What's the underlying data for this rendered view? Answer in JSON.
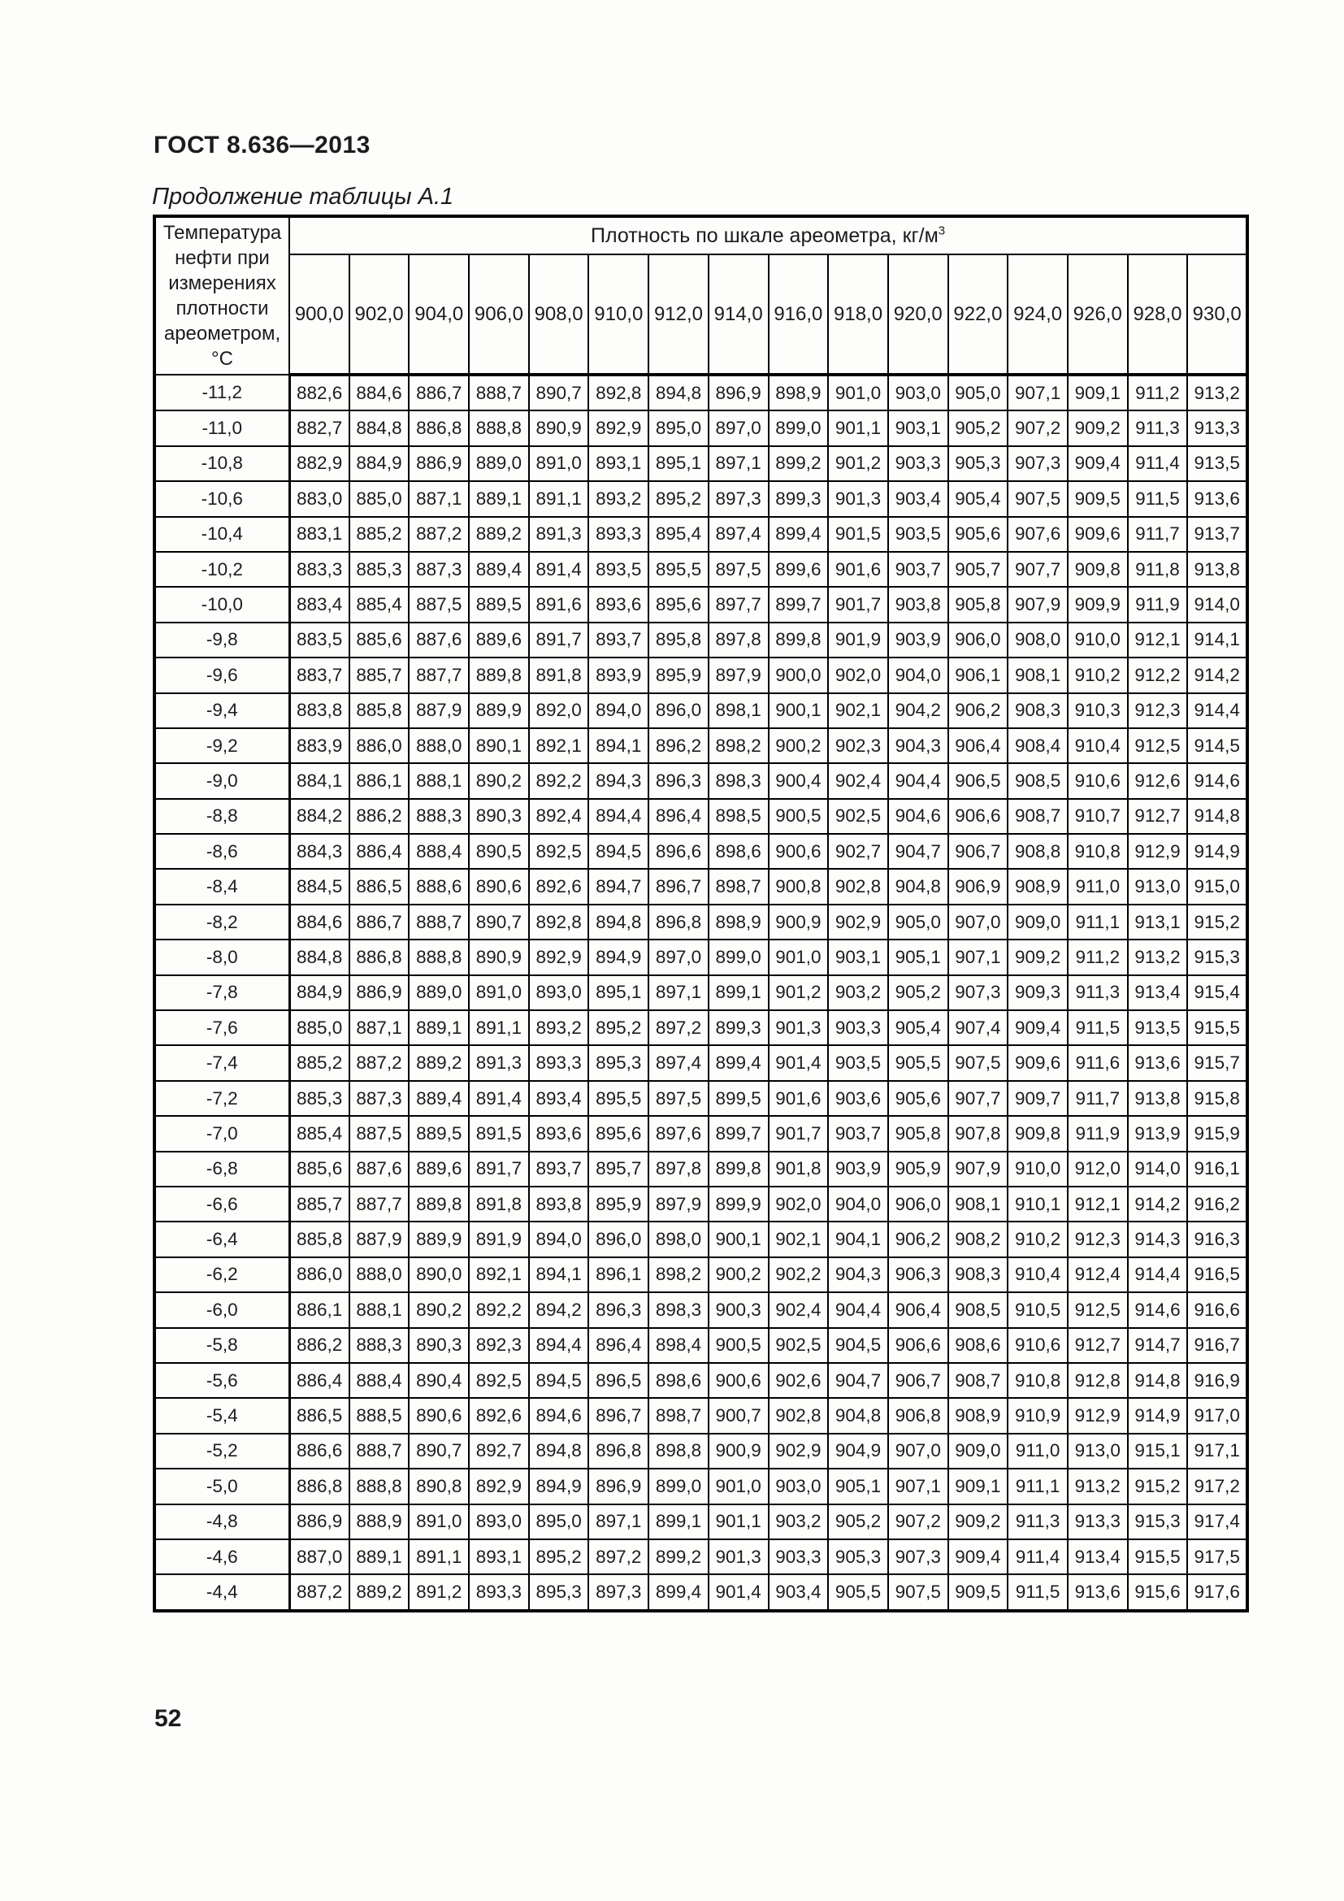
{
  "page": {
    "doc_code": "ГОСТ 8.636—2013",
    "table_caption": "Продолжение таблицы А.1",
    "page_number": "52"
  },
  "colors": {
    "background": "#fdfdfc",
    "text": "#1c1c1c",
    "border": "#000000"
  },
  "table": {
    "corner_header": "Температура нефти при измерениях плотности ареометром, °С",
    "group_header": "Плотность по шкале ареометра, кг/м",
    "group_header_sup": "3",
    "columns": [
      "900,0",
      "902,0",
      "904,0",
      "906,0",
      "908,0",
      "910,0",
      "912,0",
      "914,0",
      "916,0",
      "918,0",
      "920,0",
      "922,0",
      "924,0",
      "926,0",
      "928,0",
      "930,0"
    ],
    "rows": [
      {
        "t": "-11,2",
        "v": [
          "882,6",
          "884,6",
          "886,7",
          "888,7",
          "890,7",
          "892,8",
          "894,8",
          "896,9",
          "898,9",
          "901,0",
          "903,0",
          "905,0",
          "907,1",
          "909,1",
          "911,2",
          "913,2"
        ]
      },
      {
        "t": "-11,0",
        "v": [
          "882,7",
          "884,8",
          "886,8",
          "888,8",
          "890,9",
          "892,9",
          "895,0",
          "897,0",
          "899,0",
          "901,1",
          "903,1",
          "905,2",
          "907,2",
          "909,2",
          "911,3",
          "913,3"
        ]
      },
      {
        "t": "-10,8",
        "v": [
          "882,9",
          "884,9",
          "886,9",
          "889,0",
          "891,0",
          "893,1",
          "895,1",
          "897,1",
          "899,2",
          "901,2",
          "903,3",
          "905,3",
          "907,3",
          "909,4",
          "911,4",
          "913,5"
        ]
      },
      {
        "t": "-10,6",
        "v": [
          "883,0",
          "885,0",
          "887,1",
          "889,1",
          "891,1",
          "893,2",
          "895,2",
          "897,3",
          "899,3",
          "901,3",
          "903,4",
          "905,4",
          "907,5",
          "909,5",
          "911,5",
          "913,6"
        ]
      },
      {
        "t": "-10,4",
        "v": [
          "883,1",
          "885,2",
          "887,2",
          "889,2",
          "891,3",
          "893,3",
          "895,4",
          "897,4",
          "899,4",
          "901,5",
          "903,5",
          "905,6",
          "907,6",
          "909,6",
          "911,7",
          "913,7"
        ]
      },
      {
        "t": "-10,2",
        "v": [
          "883,3",
          "885,3",
          "887,3",
          "889,4",
          "891,4",
          "893,5",
          "895,5",
          "897,5",
          "899,6",
          "901,6",
          "903,7",
          "905,7",
          "907,7",
          "909,8",
          "911,8",
          "913,8"
        ]
      },
      {
        "t": "-10,0",
        "v": [
          "883,4",
          "885,4",
          "887,5",
          "889,5",
          "891,6",
          "893,6",
          "895,6",
          "897,7",
          "899,7",
          "901,7",
          "903,8",
          "905,8",
          "907,9",
          "909,9",
          "911,9",
          "914,0"
        ]
      },
      {
        "t": "-9,8",
        "v": [
          "883,5",
          "885,6",
          "887,6",
          "889,6",
          "891,7",
          "893,7",
          "895,8",
          "897,8",
          "899,8",
          "901,9",
          "903,9",
          "906,0",
          "908,0",
          "910,0",
          "912,1",
          "914,1"
        ]
      },
      {
        "t": "-9,6",
        "v": [
          "883,7",
          "885,7",
          "887,7",
          "889,8",
          "891,8",
          "893,9",
          "895,9",
          "897,9",
          "900,0",
          "902,0",
          "904,0",
          "906,1",
          "908,1",
          "910,2",
          "912,2",
          "914,2"
        ]
      },
      {
        "t": "-9,4",
        "v": [
          "883,8",
          "885,8",
          "887,9",
          "889,9",
          "892,0",
          "894,0",
          "896,0",
          "898,1",
          "900,1",
          "902,1",
          "904,2",
          "906,2",
          "908,3",
          "910,3",
          "912,3",
          "914,4"
        ]
      },
      {
        "t": "-9,2",
        "v": [
          "883,9",
          "886,0",
          "888,0",
          "890,1",
          "892,1",
          "894,1",
          "896,2",
          "898,2",
          "900,2",
          "902,3",
          "904,3",
          "906,4",
          "908,4",
          "910,4",
          "912,5",
          "914,5"
        ]
      },
      {
        "t": "-9,0",
        "v": [
          "884,1",
          "886,1",
          "888,1",
          "890,2",
          "892,2",
          "894,3",
          "896,3",
          "898,3",
          "900,4",
          "902,4",
          "904,4",
          "906,5",
          "908,5",
          "910,6",
          "912,6",
          "914,6"
        ]
      },
      {
        "t": "-8,8",
        "v": [
          "884,2",
          "886,2",
          "888,3",
          "890,3",
          "892,4",
          "894,4",
          "896,4",
          "898,5",
          "900,5",
          "902,5",
          "904,6",
          "906,6",
          "908,7",
          "910,7",
          "912,7",
          "914,8"
        ]
      },
      {
        "t": "-8,6",
        "v": [
          "884,3",
          "886,4",
          "888,4",
          "890,5",
          "892,5",
          "894,5",
          "896,6",
          "898,6",
          "900,6",
          "902,7",
          "904,7",
          "906,7",
          "908,8",
          "910,8",
          "912,9",
          "914,9"
        ]
      },
      {
        "t": "-8,4",
        "v": [
          "884,5",
          "886,5",
          "888,6",
          "890,6",
          "892,6",
          "894,7",
          "896,7",
          "898,7",
          "900,8",
          "902,8",
          "904,8",
          "906,9",
          "908,9",
          "911,0",
          "913,0",
          "915,0"
        ]
      },
      {
        "t": "-8,2",
        "v": [
          "884,6",
          "886,7",
          "888,7",
          "890,7",
          "892,8",
          "894,8",
          "896,8",
          "898,9",
          "900,9",
          "902,9",
          "905,0",
          "907,0",
          "909,0",
          "911,1",
          "913,1",
          "915,2"
        ]
      },
      {
        "t": "-8,0",
        "v": [
          "884,8",
          "886,8",
          "888,8",
          "890,9",
          "892,9",
          "894,9",
          "897,0",
          "899,0",
          "901,0",
          "903,1",
          "905,1",
          "907,1",
          "909,2",
          "911,2",
          "913,2",
          "915,3"
        ]
      },
      {
        "t": "-7,8",
        "v": [
          "884,9",
          "886,9",
          "889,0",
          "891,0",
          "893,0",
          "895,1",
          "897,1",
          "899,1",
          "901,2",
          "903,2",
          "905,2",
          "907,3",
          "909,3",
          "911,3",
          "913,4",
          "915,4"
        ]
      },
      {
        "t": "-7,6",
        "v": [
          "885,0",
          "887,1",
          "889,1",
          "891,1",
          "893,2",
          "895,2",
          "897,2",
          "899,3",
          "901,3",
          "903,3",
          "905,4",
          "907,4",
          "909,4",
          "911,5",
          "913,5",
          "915,5"
        ]
      },
      {
        "t": "-7,4",
        "v": [
          "885,2",
          "887,2",
          "889,2",
          "891,3",
          "893,3",
          "895,3",
          "897,4",
          "899,4",
          "901,4",
          "903,5",
          "905,5",
          "907,5",
          "909,6",
          "911,6",
          "913,6",
          "915,7"
        ]
      },
      {
        "t": "-7,2",
        "v": [
          "885,3",
          "887,3",
          "889,4",
          "891,4",
          "893,4",
          "895,5",
          "897,5",
          "899,5",
          "901,6",
          "903,6",
          "905,6",
          "907,7",
          "909,7",
          "911,7",
          "913,8",
          "915,8"
        ]
      },
      {
        "t": "-7,0",
        "v": [
          "885,4",
          "887,5",
          "889,5",
          "891,5",
          "893,6",
          "895,6",
          "897,6",
          "899,7",
          "901,7",
          "903,7",
          "905,8",
          "907,8",
          "909,8",
          "911,9",
          "913,9",
          "915,9"
        ]
      },
      {
        "t": "-6,8",
        "v": [
          "885,6",
          "887,6",
          "889,6",
          "891,7",
          "893,7",
          "895,7",
          "897,8",
          "899,8",
          "901,8",
          "903,9",
          "905,9",
          "907,9",
          "910,0",
          "912,0",
          "914,0",
          "916,1"
        ]
      },
      {
        "t": "-6,6",
        "v": [
          "885,7",
          "887,7",
          "889,8",
          "891,8",
          "893,8",
          "895,9",
          "897,9",
          "899,9",
          "902,0",
          "904,0",
          "906,0",
          "908,1",
          "910,1",
          "912,1",
          "914,2",
          "916,2"
        ]
      },
      {
        "t": "-6,4",
        "v": [
          "885,8",
          "887,9",
          "889,9",
          "891,9",
          "894,0",
          "896,0",
          "898,0",
          "900,1",
          "902,1",
          "904,1",
          "906,2",
          "908,2",
          "910,2",
          "912,3",
          "914,3",
          "916,3"
        ]
      },
      {
        "t": "-6,2",
        "v": [
          "886,0",
          "888,0",
          "890,0",
          "892,1",
          "894,1",
          "896,1",
          "898,2",
          "900,2",
          "902,2",
          "904,3",
          "906,3",
          "908,3",
          "910,4",
          "912,4",
          "914,4",
          "916,5"
        ]
      },
      {
        "t": "-6,0",
        "v": [
          "886,1",
          "888,1",
          "890,2",
          "892,2",
          "894,2",
          "896,3",
          "898,3",
          "900,3",
          "902,4",
          "904,4",
          "906,4",
          "908,5",
          "910,5",
          "912,5",
          "914,6",
          "916,6"
        ]
      },
      {
        "t": "-5,8",
        "v": [
          "886,2",
          "888,3",
          "890,3",
          "892,3",
          "894,4",
          "896,4",
          "898,4",
          "900,5",
          "902,5",
          "904,5",
          "906,6",
          "908,6",
          "910,6",
          "912,7",
          "914,7",
          "916,7"
        ]
      },
      {
        "t": "-5,6",
        "v": [
          "886,4",
          "888,4",
          "890,4",
          "892,5",
          "894,5",
          "896,5",
          "898,6",
          "900,6",
          "902,6",
          "904,7",
          "906,7",
          "908,7",
          "910,8",
          "912,8",
          "914,8",
          "916,9"
        ]
      },
      {
        "t": "-5,4",
        "v": [
          "886,5",
          "888,5",
          "890,6",
          "892,6",
          "894,6",
          "896,7",
          "898,7",
          "900,7",
          "902,8",
          "904,8",
          "906,8",
          "908,9",
          "910,9",
          "912,9",
          "914,9",
          "917,0"
        ]
      },
      {
        "t": "-5,2",
        "v": [
          "886,6",
          "888,7",
          "890,7",
          "892,7",
          "894,8",
          "896,8",
          "898,8",
          "900,9",
          "902,9",
          "904,9",
          "907,0",
          "909,0",
          "911,0",
          "913,0",
          "915,1",
          "917,1"
        ]
      },
      {
        "t": "-5,0",
        "v": [
          "886,8",
          "888,8",
          "890,8",
          "892,9",
          "894,9",
          "896,9",
          "899,0",
          "901,0",
          "903,0",
          "905,1",
          "907,1",
          "909,1",
          "911,1",
          "913,2",
          "915,2",
          "917,2"
        ]
      },
      {
        "t": "-4,8",
        "v": [
          "886,9",
          "888,9",
          "891,0",
          "893,0",
          "895,0",
          "897,1",
          "899,1",
          "901,1",
          "903,2",
          "905,2",
          "907,2",
          "909,2",
          "911,3",
          "913,3",
          "915,3",
          "917,4"
        ]
      },
      {
        "t": "-4,6",
        "v": [
          "887,0",
          "889,1",
          "891,1",
          "893,1",
          "895,2",
          "897,2",
          "899,2",
          "901,3",
          "903,3",
          "905,3",
          "907,3",
          "909,4",
          "911,4",
          "913,4",
          "915,5",
          "917,5"
        ]
      },
      {
        "t": "-4,4",
        "v": [
          "887,2",
          "889,2",
          "891,2",
          "893,3",
          "895,3",
          "897,3",
          "899,4",
          "901,4",
          "903,4",
          "905,5",
          "907,5",
          "909,5",
          "911,5",
          "913,6",
          "915,6",
          "917,6"
        ]
      }
    ]
  }
}
